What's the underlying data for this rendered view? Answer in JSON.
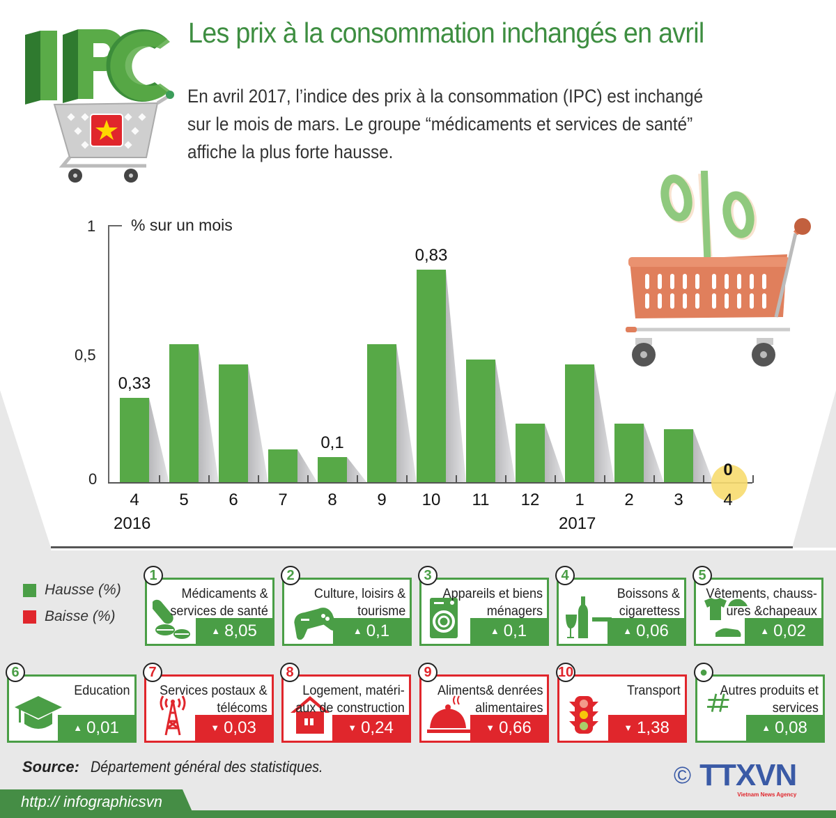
{
  "header": {
    "logo_text": "IPC",
    "title": "Les prix à la consommation inchangés en avril",
    "intro_lines": [
      "En avril 2017, l’indice des prix à la consommation (IPC) est inchangé",
      "sur le mois de mars. Le groupe “médicaments et services de santé”",
      "affiche la plus forte hausse."
    ]
  },
  "chart_data": {
    "type": "bar",
    "title": "% sur un mois",
    "xlabel": "",
    "ylabel": "% sur un mois",
    "ylim": [
      0,
      1
    ],
    "yticks": [
      "0",
      "0,5",
      "1"
    ],
    "categories": [
      "4",
      "5",
      "6",
      "7",
      "8",
      "9",
      "10",
      "11",
      "12",
      "1",
      "2",
      "3",
      "4"
    ],
    "year_labels": [
      {
        "index": 0,
        "label": "2016"
      },
      {
        "index": 9,
        "label": "2017"
      }
    ],
    "values": [
      0.33,
      0.54,
      0.46,
      0.13,
      0.1,
      0.54,
      0.83,
      0.48,
      0.23,
      0.46,
      0.23,
      0.21,
      0.0
    ],
    "data_labels": [
      {
        "index": 0,
        "label": "0,33"
      },
      {
        "index": 4,
        "label": "0,1"
      },
      {
        "index": 6,
        "label": "0,83"
      },
      {
        "index": 12,
        "label": "0"
      }
    ],
    "bar_color": "#57a947",
    "highlight_color": "#f7dc6f",
    "grid": false
  },
  "legend": {
    "items": [
      {
        "label": "Hausse (%)",
        "color": "#4a9e46"
      },
      {
        "label": "Baisse (%)",
        "color": "#e0262c"
      }
    ]
  },
  "groups": [
    {
      "rank": "1",
      "label_lines": [
        "Médicaments &",
        "services de santé"
      ],
      "direction": "up",
      "value": "8,05",
      "icon": "pills-icon"
    },
    {
      "rank": "2",
      "label_lines": [
        "Culture, loisirs &",
        "tourisme"
      ],
      "direction": "up",
      "value": "0,1",
      "icon": "gamepad-icon"
    },
    {
      "rank": "3",
      "label_lines": [
        "Appareils et biens",
        "ménagers"
      ],
      "direction": "up",
      "value": "0,1",
      "icon": "washing-machine-icon"
    },
    {
      "rank": "4",
      "label_lines": [
        "Boissons &",
        "cigarettess"
      ],
      "direction": "up",
      "value": "0,06",
      "icon": "bottle-cigarette-icon"
    },
    {
      "rank": "5",
      "label_lines": [
        "Vêtements, chauss-",
        "ures &chapeaux"
      ],
      "direction": "up",
      "value": "0,02",
      "icon": "clothes-icon"
    },
    {
      "rank": "6",
      "label_lines": [
        "Education",
        ""
      ],
      "direction": "up",
      "value": "0,01",
      "icon": "graduation-cap-icon"
    },
    {
      "rank": "7",
      "label_lines": [
        "Services postaux &",
        "télécoms"
      ],
      "direction": "down",
      "value": "0,03",
      "icon": "antenna-tower-icon"
    },
    {
      "rank": "8",
      "label_lines": [
        "Logement, matéri-",
        "aux de construction"
      ],
      "direction": "down",
      "value": "0,24",
      "icon": "house-icon"
    },
    {
      "rank": "9",
      "label_lines": [
        "Aliments& denrées",
        "alimentaires"
      ],
      "direction": "down",
      "value": "0,66",
      "icon": "food-cloche-icon"
    },
    {
      "rank": "10",
      "label_lines": [
        "Transport",
        ""
      ],
      "direction": "down",
      "value": "1,38",
      "icon": "traffic-light-icon"
    },
    {
      "rank": "●",
      "label_lines": [
        "Autres produits et",
        "services"
      ],
      "direction": "up",
      "value": "0,08",
      "icon": "hash-icon"
    }
  ],
  "arrows": {
    "up": "▲",
    "down": "▼"
  },
  "footer": {
    "source_label": "Source:",
    "source_text": "Département général des statistiques.",
    "url": "http:// infographicsvn",
    "copyright": "©",
    "agency_logo": "TTXVN",
    "agency_sub": "Vietnam News Agency"
  }
}
